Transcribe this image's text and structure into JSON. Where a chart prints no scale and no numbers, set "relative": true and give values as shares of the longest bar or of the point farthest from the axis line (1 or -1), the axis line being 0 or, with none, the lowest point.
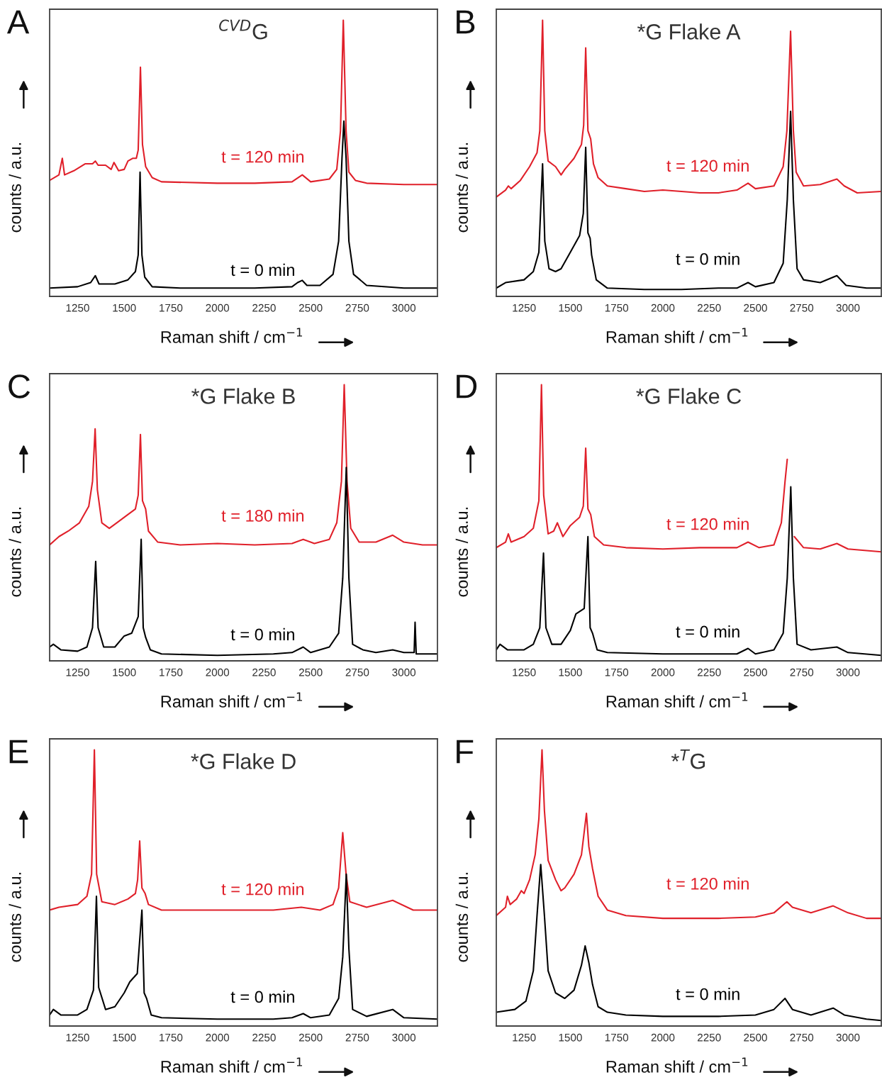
{
  "chart_data": [
    {
      "type": "line",
      "title": "$^{CVD}$G",
      "xlabel": "Raman shift / cm$^{−1}$",
      "ylabel": "counts / a.u.",
      "annotations": [
        "A"
      ],
      "relative": true,
      "xlim": [
        1100,
        3180
      ],
      "xticks": [
        1250,
        1500,
        1750,
        2000,
        2250,
        2500,
        2750,
        3000
      ],
      "tick_labels": "x",
      "grid": false,
      "legend": false,
      "series": [
        {
          "name": "t = 120 min",
          "color": "#e0202a",
          "x": [
            1100,
            1150,
            1168,
            1180,
            1230,
            1290,
            1330,
            1345,
            1360,
            1400,
            1430,
            1445,
            1470,
            1500,
            1520,
            1545,
            1565,
            1575,
            1587,
            1598,
            1615,
            1650,
            1700,
            2000,
            2200,
            2400,
            2455,
            2500,
            2600,
            2640,
            2660,
            2675,
            2690,
            2705,
            2740,
            2800,
            3000,
            3180
          ],
          "values": [
            0.42,
            0.44,
            0.5,
            0.44,
            0.455,
            0.48,
            0.48,
            0.49,
            0.475,
            0.475,
            0.46,
            0.485,
            0.455,
            0.46,
            0.49,
            0.5,
            0.5,
            0.53,
            0.83,
            0.55,
            0.47,
            0.43,
            0.415,
            0.41,
            0.41,
            0.415,
            0.44,
            0.415,
            0.425,
            0.46,
            0.6,
            1.0,
            0.6,
            0.45,
            0.42,
            0.41,
            0.405,
            0.405
          ]
        },
        {
          "name": "t = 0 min",
          "color": "#000000",
          "x": [
            1100,
            1250,
            1320,
            1345,
            1365,
            1450,
            1520,
            1560,
            1575,
            1585,
            1595,
            1610,
            1650,
            1800,
            2000,
            2200,
            2400,
            2430,
            2455,
            2480,
            2550,
            2620,
            2650,
            2668,
            2678,
            2690,
            2705,
            2730,
            2800,
            3000,
            3180
          ],
          "values": [
            0.03,
            0.035,
            0.05,
            0.075,
            0.045,
            0.045,
            0.06,
            0.09,
            0.15,
            0.45,
            0.15,
            0.07,
            0.035,
            0.03,
            0.03,
            0.03,
            0.035,
            0.05,
            0.058,
            0.04,
            0.04,
            0.08,
            0.2,
            0.5,
            0.635,
            0.5,
            0.2,
            0.08,
            0.04,
            0.03,
            0.03
          ]
        }
      ]
    },
    {
      "type": "line",
      "title": "*G Flake A",
      "xlabel": "Raman shift / cm$^{−1}$",
      "ylabel": "counts / a.u.",
      "annotations": [
        "B"
      ],
      "relative": true,
      "xlim": [
        1100,
        3180
      ],
      "xticks": [
        1250,
        1500,
        1750,
        2000,
        2250,
        2500,
        2750,
        3000
      ],
      "tick_labels": "x",
      "grid": false,
      "legend": false,
      "series": [
        {
          "name": "t = 120 min",
          "color": "#e0202a",
          "x": [
            1100,
            1150,
            1165,
            1180,
            1230,
            1280,
            1320,
            1335,
            1350,
            1362,
            1380,
            1420,
            1450,
            1470,
            1520,
            1560,
            1572,
            1583,
            1595,
            1610,
            1625,
            1650,
            1700,
            1800,
            1900,
            2000,
            2100,
            2200,
            2300,
            2400,
            2460,
            2500,
            2600,
            2650,
            2670,
            2690,
            2705,
            2720,
            2760,
            2850,
            2940,
            2980,
            3050,
            3180
          ],
          "values": [
            0.36,
            0.385,
            0.4,
            0.39,
            0.42,
            0.47,
            0.52,
            0.6,
            1.0,
            0.6,
            0.49,
            0.47,
            0.44,
            0.46,
            0.5,
            0.55,
            0.62,
            0.9,
            0.6,
            0.57,
            0.48,
            0.43,
            0.4,
            0.39,
            0.38,
            0.385,
            0.38,
            0.375,
            0.375,
            0.385,
            0.41,
            0.39,
            0.4,
            0.47,
            0.6,
            0.96,
            0.6,
            0.45,
            0.4,
            0.405,
            0.425,
            0.4,
            0.375,
            0.38
          ]
        },
        {
          "name": "t = 0 min",
          "color": "#000000",
          "x": [
            1100,
            1150,
            1250,
            1300,
            1330,
            1350,
            1362,
            1385,
            1420,
            1450,
            1500,
            1550,
            1570,
            1583,
            1595,
            1607,
            1615,
            1640,
            1700,
            1900,
            2100,
            2300,
            2400,
            2460,
            2500,
            2600,
            2650,
            2672,
            2690,
            2705,
            2725,
            2760,
            2850,
            2940,
            2990,
            3100,
            3180
          ],
          "values": [
            0.03,
            0.05,
            0.06,
            0.09,
            0.16,
            0.48,
            0.2,
            0.1,
            0.09,
            0.1,
            0.16,
            0.22,
            0.3,
            0.54,
            0.23,
            0.21,
            0.15,
            0.06,
            0.03,
            0.025,
            0.025,
            0.03,
            0.03,
            0.05,
            0.035,
            0.05,
            0.12,
            0.35,
            0.67,
            0.35,
            0.1,
            0.06,
            0.05,
            0.075,
            0.04,
            0.03,
            0.03
          ]
        }
      ]
    },
    {
      "type": "line",
      "title": "*G Flake B",
      "xlabel": "Raman shift / cm$^{−1}$",
      "ylabel": "counts / a.u.",
      "annotations": [
        "C"
      ],
      "relative": true,
      "xlim": [
        1100,
        3180
      ],
      "xticks": [
        1250,
        1500,
        1750,
        2000,
        2250,
        2500,
        2750,
        3000
      ],
      "tick_labels": "x",
      "grid": false,
      "legend": false,
      "series": [
        {
          "name": "t = 180 min",
          "color": "#e0202a",
          "x": [
            1100,
            1150,
            1200,
            1260,
            1310,
            1330,
            1344,
            1356,
            1380,
            1420,
            1460,
            1520,
            1560,
            1575,
            1587,
            1598,
            1615,
            1630,
            1680,
            1800,
            2000,
            2200,
            2400,
            2460,
            2520,
            2600,
            2640,
            2665,
            2680,
            2695,
            2715,
            2760,
            2850,
            2940,
            3000,
            3100,
            3180
          ],
          "values": [
            0.42,
            0.45,
            0.47,
            0.5,
            0.56,
            0.65,
            0.84,
            0.62,
            0.5,
            0.48,
            0.5,
            0.53,
            0.55,
            0.6,
            0.82,
            0.58,
            0.55,
            0.47,
            0.43,
            0.42,
            0.425,
            0.42,
            0.425,
            0.44,
            0.425,
            0.44,
            0.5,
            0.65,
            1.0,
            0.65,
            0.48,
            0.43,
            0.43,
            0.455,
            0.43,
            0.42,
            0.42
          ]
        },
        {
          "name": "t = 0 min",
          "color": "#000000",
          "x": [
            1100,
            1120,
            1160,
            1250,
            1300,
            1330,
            1347,
            1360,
            1390,
            1450,
            1500,
            1540,
            1575,
            1591,
            1602,
            1615,
            1640,
            1700,
            2000,
            2300,
            2400,
            2460,
            2500,
            2600,
            2650,
            2672,
            2691,
            2705,
            2725,
            2780,
            2850,
            2940,
            3000,
            3055,
            3060,
            3066,
            3180
          ],
          "values": [
            0.05,
            0.06,
            0.04,
            0.035,
            0.05,
            0.12,
            0.36,
            0.12,
            0.05,
            0.05,
            0.09,
            0.1,
            0.16,
            0.44,
            0.12,
            0.085,
            0.04,
            0.025,
            0.02,
            0.025,
            0.03,
            0.05,
            0.03,
            0.05,
            0.1,
            0.3,
            0.7,
            0.3,
            0.06,
            0.04,
            0.03,
            0.04,
            0.03,
            0.03,
            0.14,
            0.025,
            0.025
          ]
        }
      ]
    },
    {
      "type": "line",
      "title": "*G Flake C",
      "xlabel": "Raman shift / cm$^{−1}$",
      "ylabel": "counts / a.u.",
      "annotations": [
        "D"
      ],
      "relative": true,
      "xlim": [
        1100,
        3180
      ],
      "xticks": [
        1250,
        1500,
        1750,
        2000,
        2250,
        2500,
        2750,
        3000
      ],
      "tick_labels": "x",
      "grid": false,
      "legend": false,
      "series": [
        {
          "name": "t = 120 min",
          "color": "#e0202a",
          "x": [
            1100,
            1150,
            1165,
            1180,
            1250,
            1300,
            1330,
            1344,
            1356,
            1380,
            1410,
            1430,
            1460,
            1500,
            1550,
            1570,
            1583,
            1595,
            1610,
            1630,
            1680,
            1800,
            2000,
            2200,
            2400,
            2460,
            2520,
            2600,
            2640,
            2660,
            2672,
            2690,
            2710,
            2760,
            2850,
            2940,
            3000,
            3180
          ],
          "values": [
            0.41,
            0.43,
            0.46,
            0.43,
            0.45,
            0.48,
            0.58,
            1.0,
            0.6,
            0.46,
            0.47,
            0.5,
            0.45,
            0.49,
            0.52,
            0.56,
            0.77,
            0.55,
            0.53,
            0.45,
            0.42,
            0.41,
            0.405,
            0.41,
            0.41,
            0.43,
            0.41,
            0.42,
            0.5,
            0.65,
            0.73,
            null,
            0.45,
            0.41,
            0.405,
            0.425,
            0.405,
            0.395
          ]
        },
        {
          "name": "t = 0 min",
          "color": "#000000",
          "x": [
            1100,
            1120,
            1160,
            1250,
            1300,
            1335,
            1355,
            1368,
            1400,
            1450,
            1500,
            1530,
            1575,
            1595,
            1607,
            1620,
            1645,
            1700,
            2000,
            2300,
            2400,
            2460,
            2500,
            2600,
            2650,
            2672,
            2691,
            2705,
            2725,
            2800,
            2940,
            3000,
            3180
          ],
          "values": [
            0.04,
            0.06,
            0.04,
            0.04,
            0.06,
            0.12,
            0.39,
            0.12,
            0.06,
            0.06,
            0.11,
            0.17,
            0.19,
            0.45,
            0.12,
            0.1,
            0.04,
            0.03,
            0.025,
            0.025,
            0.025,
            0.045,
            0.025,
            0.04,
            0.1,
            0.3,
            0.63,
            0.3,
            0.06,
            0.04,
            0.05,
            0.03,
            0.02
          ]
        }
      ]
    },
    {
      "type": "line",
      "title": "*G Flake D",
      "xlabel": "Raman shift / cm$^{−1}$",
      "ylabel": "counts / a.u.",
      "annotations": [
        "E"
      ],
      "relative": true,
      "xlim": [
        1100,
        3180
      ],
      "xticks": [
        1250,
        1500,
        1750,
        2000,
        2250,
        2500,
        2750,
        3000
      ],
      "tick_labels": "x",
      "grid": false,
      "legend": false,
      "series": [
        {
          "name": "t = 120 min",
          "color": "#e0202a",
          "x": [
            1100,
            1150,
            1250,
            1300,
            1325,
            1340,
            1352,
            1380,
            1450,
            1520,
            1560,
            1572,
            1583,
            1595,
            1612,
            1630,
            1700,
            2000,
            2300,
            2450,
            2550,
            2620,
            2650,
            2672,
            2690,
            2710,
            2800,
            2940,
            3050,
            3180
          ],
          "values": [
            0.42,
            0.43,
            0.44,
            0.47,
            0.55,
            1.0,
            0.55,
            0.45,
            0.44,
            0.46,
            0.48,
            0.53,
            0.67,
            0.5,
            0.48,
            0.44,
            0.42,
            0.42,
            0.42,
            0.43,
            0.42,
            0.44,
            0.5,
            0.7,
            0.55,
            0.45,
            0.43,
            0.455,
            0.42,
            0.42
          ]
        },
        {
          "name": "t = 0 min",
          "color": "#000000",
          "x": [
            1100,
            1120,
            1160,
            1250,
            1300,
            1335,
            1351,
            1363,
            1400,
            1450,
            1500,
            1530,
            1570,
            1595,
            1607,
            1620,
            1645,
            1700,
            2000,
            2300,
            2400,
            2460,
            2500,
            2600,
            2650,
            2672,
            2691,
            2705,
            2725,
            2800,
            2940,
            3000,
            3180
          ],
          "values": [
            0.04,
            0.06,
            0.04,
            0.04,
            0.06,
            0.13,
            0.47,
            0.14,
            0.06,
            0.07,
            0.12,
            0.16,
            0.19,
            0.42,
            0.12,
            0.1,
            0.04,
            0.03,
            0.025,
            0.025,
            0.03,
            0.045,
            0.03,
            0.04,
            0.1,
            0.25,
            0.55,
            0.28,
            0.06,
            0.035,
            0.06,
            0.03,
            0.025
          ]
        }
      ]
    },
    {
      "type": "line",
      "title": "*$^{T}$G",
      "xlabel": "Raman shift / cm$^{−1}$",
      "ylabel": "counts / a.u.",
      "annotations": [
        "F"
      ],
      "relative": true,
      "xlim": [
        1100,
        3180
      ],
      "xticks": [
        1250,
        1500,
        1750,
        2000,
        2250,
        2500,
        2750,
        3000
      ],
      "tick_labels": "x",
      "grid": false,
      "legend": false,
      "series": [
        {
          "name": "t = 120 min",
          "color": "#e0202a",
          "x": [
            1100,
            1150,
            1160,
            1175,
            1210,
            1235,
            1250,
            1280,
            1310,
            1330,
            1347,
            1360,
            1380,
            1420,
            1450,
            1470,
            1520,
            1560,
            1587,
            1600,
            1620,
            1650,
            1700,
            1800,
            2000,
            2300,
            2500,
            2600,
            2670,
            2700,
            2800,
            2920,
            3000,
            3100,
            3180
          ],
          "values": [
            0.4,
            0.43,
            0.47,
            0.44,
            0.46,
            0.49,
            0.48,
            0.53,
            0.62,
            0.75,
            1.0,
            0.78,
            0.6,
            0.53,
            0.49,
            0.5,
            0.55,
            0.62,
            0.77,
            0.65,
            0.57,
            0.47,
            0.42,
            0.4,
            0.39,
            0.39,
            0.395,
            0.41,
            0.45,
            0.43,
            0.41,
            0.435,
            0.41,
            0.39,
            0.39
          ]
        },
        {
          "name": "t = 0 min",
          "color": "#000000",
          "x": [
            1100,
            1200,
            1260,
            1300,
            1320,
            1340,
            1360,
            1380,
            1420,
            1470,
            1520,
            1560,
            1580,
            1600,
            1620,
            1650,
            1700,
            1800,
            2000,
            2300,
            2500,
            2600,
            2660,
            2700,
            2800,
            2920,
            2980,
            3100,
            3180
          ],
          "values": [
            0.05,
            0.06,
            0.09,
            0.2,
            0.4,
            0.585,
            0.4,
            0.2,
            0.12,
            0.1,
            0.13,
            0.22,
            0.29,
            0.23,
            0.15,
            0.07,
            0.05,
            0.04,
            0.035,
            0.035,
            0.04,
            0.06,
            0.1,
            0.06,
            0.04,
            0.065,
            0.04,
            0.025,
            0.02
          ]
        }
      ]
    }
  ]
}
